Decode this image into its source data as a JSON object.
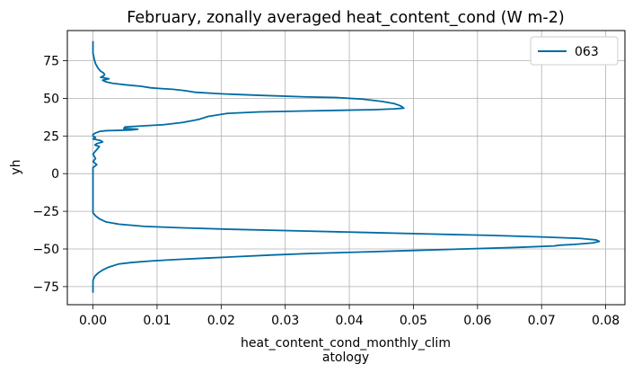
{
  "chart_data": {
    "type": "line",
    "title": "February, zonally averaged heat_content_cond (W m-2)",
    "xlabel_lines": [
      "heat_content_cond_monthly_clim",
      "atology"
    ],
    "ylabel": "yh",
    "xlim": [
      -0.004,
      0.083
    ],
    "ylim": [
      -87,
      95
    ],
    "xticks": [
      0.0,
      0.01,
      0.02,
      0.03,
      0.04,
      0.05,
      0.06,
      0.07,
      0.08
    ],
    "xtick_labels": [
      "0.00",
      "0.01",
      "0.02",
      "0.03",
      "0.04",
      "0.05",
      "0.06",
      "0.07",
      "0.08"
    ],
    "yticks": [
      -75,
      -50,
      -25,
      0,
      25,
      50,
      75
    ],
    "ytick_labels": [
      "−75",
      "−50",
      "−25",
      "0",
      "25",
      "50",
      "75"
    ],
    "grid": true,
    "legend_position": "top-right",
    "color": "#006ba4",
    "series": [
      {
        "name": "063",
        "points": [
          [
            0.0,
            88
          ],
          [
            0.0,
            85
          ],
          [
            0.0,
            80
          ],
          [
            0.0002,
            76
          ],
          [
            0.0004,
            73
          ],
          [
            0.0008,
            70
          ],
          [
            0.0012,
            68
          ],
          [
            0.0016,
            67
          ],
          [
            0.0018,
            66
          ],
          [
            0.0017,
            65
          ],
          [
            0.0012,
            64
          ],
          [
            0.0025,
            63
          ],
          [
            0.0015,
            62
          ],
          [
            0.002,
            61
          ],
          [
            0.003,
            60
          ],
          [
            0.005,
            59
          ],
          [
            0.0075,
            58
          ],
          [
            0.009,
            57
          ],
          [
            0.0105,
            56.5
          ],
          [
            0.0125,
            56
          ],
          [
            0.0145,
            55
          ],
          [
            0.016,
            54
          ],
          [
            0.02,
            53
          ],
          [
            0.026,
            52
          ],
          [
            0.033,
            51
          ],
          [
            0.038,
            50.5
          ],
          [
            0.042,
            49.5
          ],
          [
            0.045,
            48
          ],
          [
            0.047,
            46.5
          ],
          [
            0.048,
            45
          ],
          [
            0.0485,
            43.5
          ],
          [
            0.047,
            43
          ],
          [
            0.044,
            42.5
          ],
          [
            0.038,
            42
          ],
          [
            0.032,
            41.5
          ],
          [
            0.026,
            41
          ],
          [
            0.021,
            40
          ],
          [
            0.018,
            38
          ],
          [
            0.0165,
            36
          ],
          [
            0.014,
            34
          ],
          [
            0.011,
            32.5
          ],
          [
            0.007,
            31.5
          ],
          [
            0.005,
            31
          ],
          [
            0.0048,
            30
          ],
          [
            0.007,
            29.5
          ],
          [
            0.006,
            29
          ],
          [
            0.002,
            28.5
          ],
          [
            0.001,
            28
          ],
          [
            0.0004,
            27
          ],
          [
            0.0,
            26
          ],
          [
            0.0,
            25
          ],
          [
            0.0004,
            24
          ],
          [
            0.0,
            23
          ],
          [
            0.0012,
            22
          ],
          [
            0.0015,
            21
          ],
          [
            0.0006,
            20
          ],
          [
            0.0003,
            19
          ],
          [
            0.001,
            18
          ],
          [
            0.0006,
            16
          ],
          [
            0.0,
            13
          ],
          [
            0.0004,
            10
          ],
          [
            0.0,
            8
          ],
          [
            0.0006,
            6
          ],
          [
            0.0,
            4
          ],
          [
            0.0,
            0
          ],
          [
            0.0,
            -10
          ],
          [
            0.0,
            -20
          ],
          [
            0.0,
            -26
          ],
          [
            0.0004,
            -28
          ],
          [
            0.001,
            -30
          ],
          [
            0.002,
            -32
          ],
          [
            0.004,
            -33.5
          ],
          [
            0.008,
            -35
          ],
          [
            0.014,
            -36
          ],
          [
            0.022,
            -37
          ],
          [
            0.032,
            -38
          ],
          [
            0.042,
            -39
          ],
          [
            0.052,
            -40
          ],
          [
            0.062,
            -41
          ],
          [
            0.07,
            -42
          ],
          [
            0.076,
            -43
          ],
          [
            0.0785,
            -44
          ],
          [
            0.079,
            -45
          ],
          [
            0.078,
            -46
          ],
          [
            0.075,
            -47
          ],
          [
            0.0728,
            -47.5
          ],
          [
            0.072,
            -48
          ],
          [
            0.066,
            -49
          ],
          [
            0.058,
            -50
          ],
          [
            0.05,
            -51
          ],
          [
            0.042,
            -52
          ],
          [
            0.034,
            -53
          ],
          [
            0.028,
            -54
          ],
          [
            0.023,
            -55
          ],
          [
            0.018,
            -56
          ],
          [
            0.013,
            -57
          ],
          [
            0.009,
            -58
          ],
          [
            0.006,
            -59
          ],
          [
            0.004,
            -60
          ],
          [
            0.0025,
            -62
          ],
          [
            0.0015,
            -64
          ],
          [
            0.0008,
            -66
          ],
          [
            0.0003,
            -68
          ],
          [
            0.0,
            -71
          ],
          [
            0.0,
            -75
          ],
          [
            0.0,
            -79
          ]
        ]
      }
    ]
  }
}
